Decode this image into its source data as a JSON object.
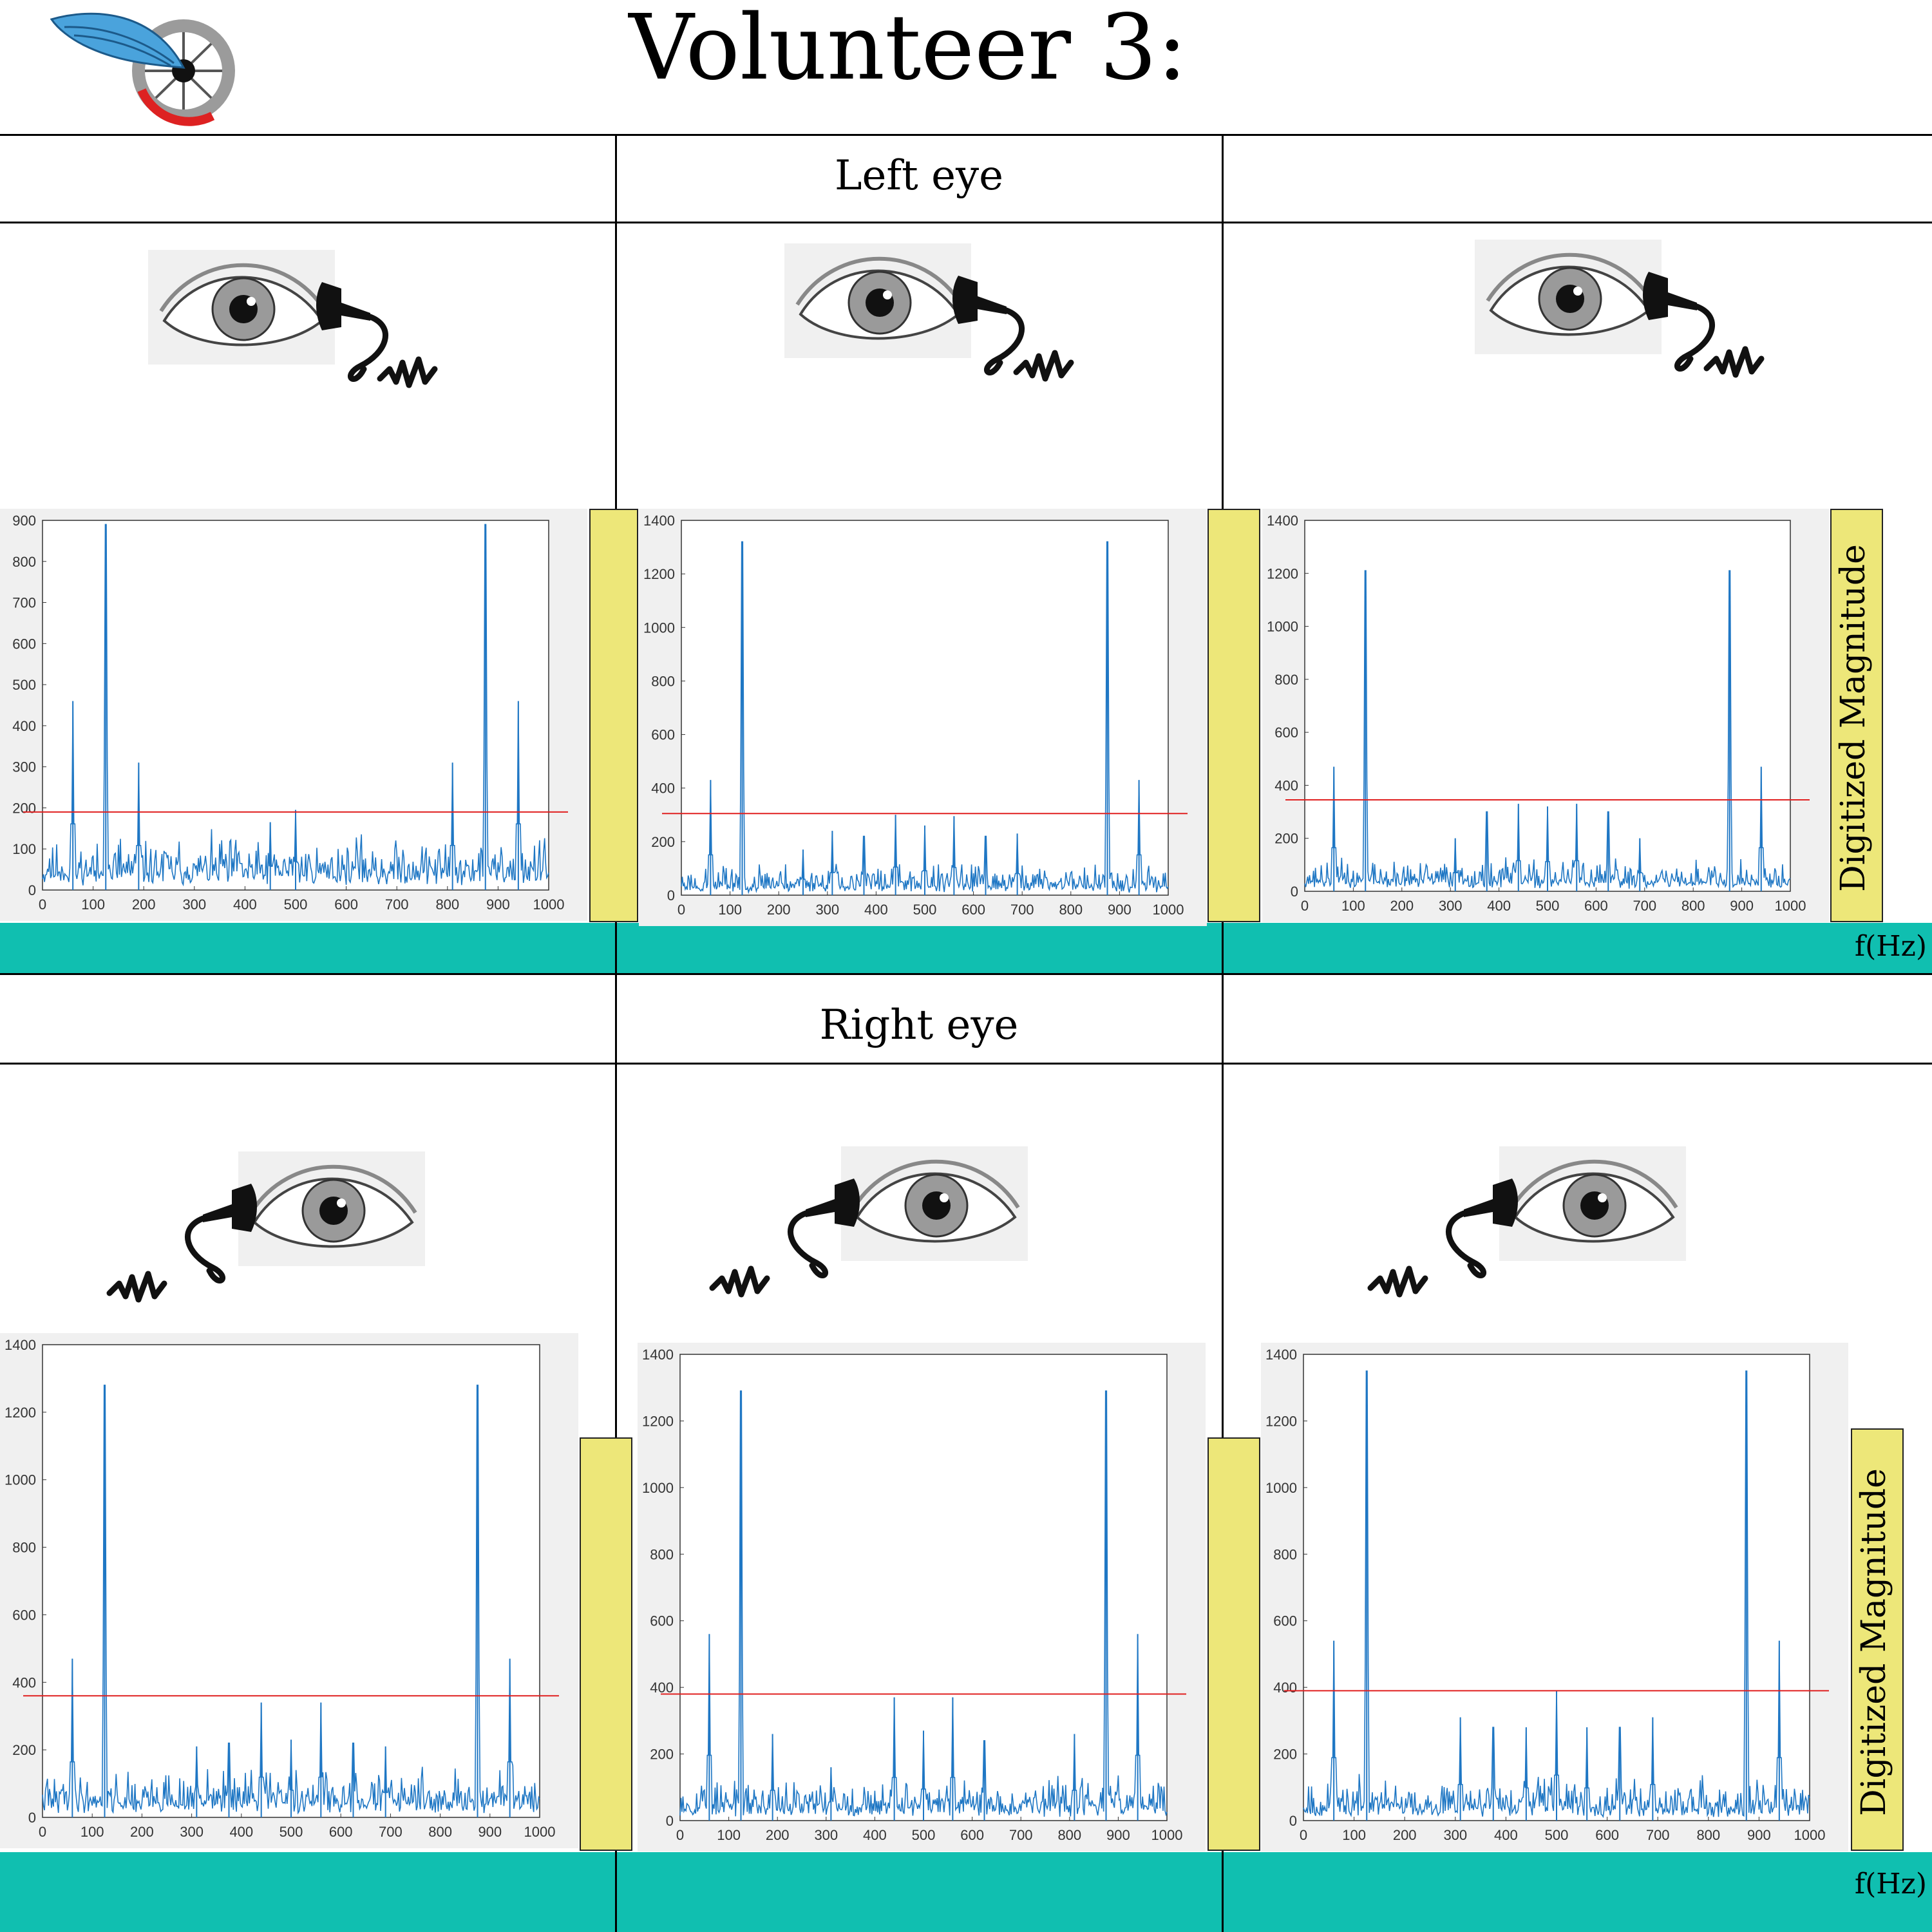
{
  "title": "Volunteer 3:",
  "sections": {
    "left": "Left eye",
    "right": "Right eye"
  },
  "axis_labels": {
    "magnitude": "Digitized Magnitude",
    "frequency": "f(Hz)"
  },
  "colors": {
    "band": "#10bfb0",
    "ybar": "#ede779",
    "signal": "#1f77c4",
    "threshold": "#e02020"
  },
  "icons": [
    "wheel-wing-logo",
    "eye-icon",
    "microphone-icon",
    "sound-wave-icon"
  ],
  "chart_data": [
    {
      "type": "line",
      "xlim": [
        0,
        1000
      ],
      "ylim": [
        0,
        900
      ],
      "xticks": [
        0,
        100,
        200,
        300,
        400,
        500,
        600,
        700,
        800,
        900,
        1000
      ],
      "yticks": [
        0,
        100,
        200,
        300,
        400,
        500,
        600,
        700,
        800,
        900
      ],
      "threshold": 190,
      "noise": 65,
      "seed": 11,
      "peaks": [
        [
          60,
          460
        ],
        [
          125,
          890
        ],
        [
          190,
          310
        ],
        [
          450,
          165
        ],
        [
          500,
          195
        ],
        [
          810,
          310
        ],
        [
          875,
          890
        ],
        [
          940,
          460
        ]
      ]
    },
    {
      "type": "line",
      "xlim": [
        0,
        1000
      ],
      "ylim": [
        0,
        1400
      ],
      "xticks": [
        0,
        100,
        200,
        300,
        400,
        500,
        600,
        700,
        800,
        900,
        1000
      ],
      "yticks": [
        0,
        200,
        400,
        600,
        800,
        1000,
        1200,
        1400
      ],
      "threshold": 305,
      "noise": 60,
      "seed": 23,
      "peaks": [
        [
          60,
          430
        ],
        [
          125,
          1320
        ],
        [
          250,
          170
        ],
        [
          310,
          240
        ],
        [
          375,
          220
        ],
        [
          440,
          300
        ],
        [
          500,
          260
        ],
        [
          560,
          295
        ],
        [
          625,
          220
        ],
        [
          690,
          230
        ],
        [
          875,
          1320
        ],
        [
          940,
          430
        ]
      ]
    },
    {
      "type": "line",
      "xlim": [
        0,
        1000
      ],
      "ylim": [
        0,
        1400
      ],
      "xticks": [
        0,
        100,
        200,
        300,
        400,
        500,
        600,
        700,
        800,
        900,
        1000
      ],
      "yticks": [
        0,
        200,
        400,
        600,
        800,
        1000,
        1200,
        1400
      ],
      "threshold": 345,
      "noise": 60,
      "seed": 37,
      "peaks": [
        [
          60,
          470
        ],
        [
          125,
          1210
        ],
        [
          310,
          200
        ],
        [
          375,
          300
        ],
        [
          440,
          330
        ],
        [
          500,
          320
        ],
        [
          560,
          330
        ],
        [
          625,
          300
        ],
        [
          690,
          200
        ],
        [
          875,
          1210
        ],
        [
          940,
          470
        ]
      ]
    },
    {
      "type": "line",
      "xlim": [
        0,
        1000
      ],
      "ylim": [
        0,
        1400
      ],
      "xticks": [
        0,
        100,
        200,
        300,
        400,
        500,
        600,
        700,
        800,
        900,
        1000
      ],
      "yticks": [
        0,
        200,
        400,
        600,
        800,
        1000,
        1200,
        1400
      ],
      "threshold": 360,
      "noise": 70,
      "seed": 41,
      "peaks": [
        [
          60,
          470
        ],
        [
          125,
          1280
        ],
        [
          310,
          210
        ],
        [
          375,
          220
        ],
        [
          440,
          340
        ],
        [
          500,
          230
        ],
        [
          560,
          340
        ],
        [
          625,
          220
        ],
        [
          690,
          210
        ],
        [
          875,
          1280
        ],
        [
          940,
          470
        ]
      ]
    },
    {
      "type": "line",
      "xlim": [
        0,
        1000
      ],
      "ylim": [
        0,
        1400
      ],
      "xticks": [
        0,
        100,
        200,
        300,
        400,
        500,
        600,
        700,
        800,
        900,
        1000
      ],
      "yticks": [
        0,
        200,
        400,
        600,
        800,
        1000,
        1200,
        1400
      ],
      "threshold": 380,
      "noise": 65,
      "seed": 53,
      "peaks": [
        [
          60,
          560
        ],
        [
          125,
          1290
        ],
        [
          190,
          260
        ],
        [
          310,
          160
        ],
        [
          440,
          370
        ],
        [
          500,
          270
        ],
        [
          560,
          370
        ],
        [
          625,
          240
        ],
        [
          810,
          260
        ],
        [
          875,
          1290
        ],
        [
          940,
          560
        ]
      ]
    },
    {
      "type": "line",
      "xlim": [
        0,
        1000
      ],
      "ylim": [
        0,
        1400
      ],
      "xticks": [
        0,
        100,
        200,
        300,
        400,
        500,
        600,
        700,
        800,
        900,
        1000
      ],
      "yticks": [
        0,
        200,
        400,
        600,
        800,
        1000,
        1200,
        1400
      ],
      "threshold": 390,
      "noise": 65,
      "seed": 67,
      "peaks": [
        [
          60,
          540
        ],
        [
          125,
          1350
        ],
        [
          310,
          310
        ],
        [
          375,
          280
        ],
        [
          440,
          280
        ],
        [
          500,
          390
        ],
        [
          560,
          280
        ],
        [
          625,
          280
        ],
        [
          690,
          310
        ],
        [
          875,
          1350
        ],
        [
          940,
          540
        ]
      ]
    }
  ]
}
